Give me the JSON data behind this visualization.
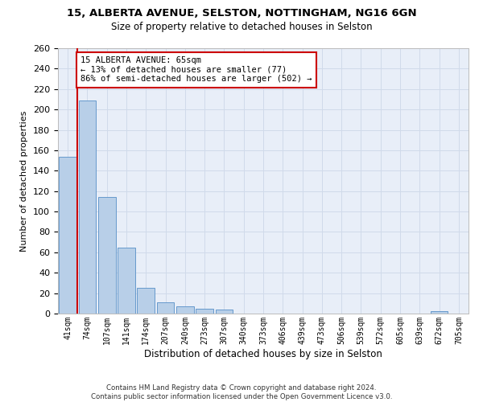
{
  "title_line1": "15, ALBERTA AVENUE, SELSTON, NOTTINGHAM, NG16 6GN",
  "title_line2": "Size of property relative to detached houses in Selston",
  "xlabel": "Distribution of detached houses by size in Selston",
  "ylabel": "Number of detached properties",
  "footer": "Contains HM Land Registry data © Crown copyright and database right 2024.\nContains public sector information licensed under the Open Government Licence v3.0.",
  "bin_labels": [
    "41sqm",
    "74sqm",
    "107sqm",
    "141sqm",
    "174sqm",
    "207sqm",
    "240sqm",
    "273sqm",
    "307sqm",
    "340sqm",
    "373sqm",
    "406sqm",
    "439sqm",
    "473sqm",
    "506sqm",
    "539sqm",
    "572sqm",
    "605sqm",
    "639sqm",
    "672sqm",
    "705sqm"
  ],
  "bar_values": [
    154,
    209,
    114,
    65,
    25,
    11,
    7,
    5,
    4,
    0,
    0,
    0,
    0,
    0,
    0,
    0,
    0,
    0,
    0,
    2,
    0
  ],
  "bar_color": "#b8cfe8",
  "bar_edge_color": "#6699cc",
  "grid_color": "#d0daea",
  "background_color": "#e8eef8",
  "vline_color": "#cc0000",
  "annotation_title": "15 ALBERTA AVENUE: 65sqm",
  "annotation_line1": "← 13% of detached houses are smaller (77)",
  "annotation_line2": "86% of semi-detached houses are larger (502) →",
  "annotation_box_color": "#ffffff",
  "annotation_box_edge": "#cc0000",
  "ylim": [
    0,
    260
  ],
  "yticks": [
    0,
    20,
    40,
    60,
    80,
    100,
    120,
    140,
    160,
    180,
    200,
    220,
    240,
    260
  ],
  "vline_pos": 0.5
}
